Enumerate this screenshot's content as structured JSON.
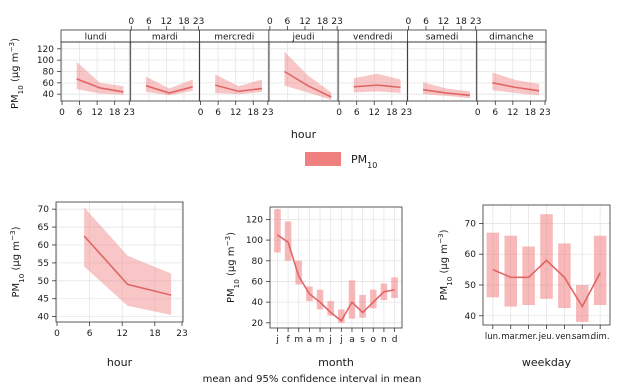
{
  "pollutant_label": "PM",
  "pollutant_sub": "10",
  "colors": {
    "accent": "#f08080",
    "line": "#e06666"
  },
  "footer_text": "mean and 95% confidence interval in mean",
  "chart_data": [
    {
      "type": "line",
      "panel": "hour-by-weekday",
      "xlabel": "hour",
      "ylabel": "PM10 (µg m-3)",
      "xlim": [
        0,
        23
      ],
      "ylim": [
        28,
        132
      ],
      "xticks": [
        0,
        6,
        12,
        18,
        23
      ],
      "yticks": [
        40,
        60,
        80,
        100,
        120
      ],
      "facets": [
        "lundi",
        "mardi",
        "mercredi",
        "jeudi",
        "vendredi",
        "samedi",
        "dimanche"
      ],
      "series": [
        {
          "facet": "lundi",
          "x": [
            5,
            13,
            21
          ],
          "y": [
            67,
            51,
            44
          ],
          "lower": [
            49,
            41,
            39
          ],
          "upper": [
            97,
            60,
            54
          ]
        },
        {
          "facet": "mardi",
          "x": [
            5,
            13,
            21
          ],
          "y": [
            55,
            42,
            53
          ],
          "lower": [
            44,
            38,
            46
          ],
          "upper": [
            71,
            50,
            66
          ]
        },
        {
          "facet": "mercredi",
          "x": [
            5,
            13,
            21
          ],
          "y": [
            56,
            45,
            50
          ],
          "lower": [
            42,
            40,
            44
          ],
          "upper": [
            75,
            54,
            66
          ]
        },
        {
          "facet": "jeudi",
          "x": [
            5,
            13,
            21
          ],
          "y": [
            80,
            55,
            35
          ],
          "lower": [
            55,
            43,
            30
          ],
          "upper": [
            115,
            73,
            43
          ]
        },
        {
          "facet": "vendredi",
          "x": [
            5,
            13,
            21
          ],
          "y": [
            53,
            56,
            52
          ],
          "lower": [
            43,
            45,
            42
          ],
          "upper": [
            68,
            76,
            66
          ]
        },
        {
          "facet": "samedi",
          "x": [
            5,
            13,
            21
          ],
          "y": [
            48,
            42,
            38
          ],
          "lower": [
            40,
            37,
            33
          ],
          "upper": [
            61,
            50,
            45
          ]
        },
        {
          "facet": "dimanche",
          "x": [
            5,
            13,
            21
          ],
          "y": [
            60,
            52,
            46
          ],
          "lower": [
            47,
            42,
            38
          ],
          "upper": [
            78,
            65,
            58
          ]
        }
      ]
    },
    {
      "type": "line",
      "panel": "hour",
      "xlabel": "hour",
      "ylabel": "PM10 (µg m-3)",
      "xlim": [
        0,
        23
      ],
      "ylim": [
        38.5,
        72
      ],
      "xticks": [
        0,
        6,
        12,
        18,
        23
      ],
      "yticks": [
        40,
        45,
        50,
        55,
        60,
        65,
        70
      ],
      "x": [
        5,
        13,
        21
      ],
      "y": [
        62.5,
        49,
        46
      ],
      "lower": [
        54,
        43,
        40.5
      ],
      "upper": [
        70.5,
        57,
        52
      ]
    },
    {
      "type": "bar",
      "panel": "month",
      "xlabel": "month",
      "ylabel": "PM10 (µg m-3)",
      "ylim": [
        15,
        132
      ],
      "yticks": [
        20,
        40,
        60,
        80,
        100,
        120
      ],
      "categories": [
        "j",
        "f",
        "m",
        "a",
        "m",
        "j",
        "j",
        "a",
        "s",
        "o",
        "n",
        "d"
      ],
      "values": [
        105,
        98,
        65,
        48,
        40,
        30,
        22,
        40,
        30,
        40,
        50,
        52
      ],
      "lower": [
        88,
        80,
        57,
        41,
        33,
        27,
        20,
        24,
        25,
        34,
        42,
        44
      ],
      "upper": [
        130,
        118,
        80,
        55,
        52,
        41,
        33,
        61,
        47,
        52,
        58,
        64
      ]
    },
    {
      "type": "bar",
      "panel": "weekday",
      "xlabel": "weekday",
      "ylabel": "PM10 (µg m-3)",
      "ylim": [
        37,
        76
      ],
      "yticks": [
        40,
        50,
        60,
        70
      ],
      "categories": [
        "lun.",
        "mar.",
        "mer.",
        "jeu.",
        "ven.",
        "sam.",
        "dim."
      ],
      "values": [
        55,
        52.5,
        52.5,
        58,
        52.5,
        43,
        54
      ],
      "lower": [
        46,
        43,
        43.5,
        45.5,
        42.5,
        38,
        43.5
      ],
      "upper": [
        67,
        66,
        62.5,
        73,
        63.5,
        50,
        66
      ]
    }
  ]
}
